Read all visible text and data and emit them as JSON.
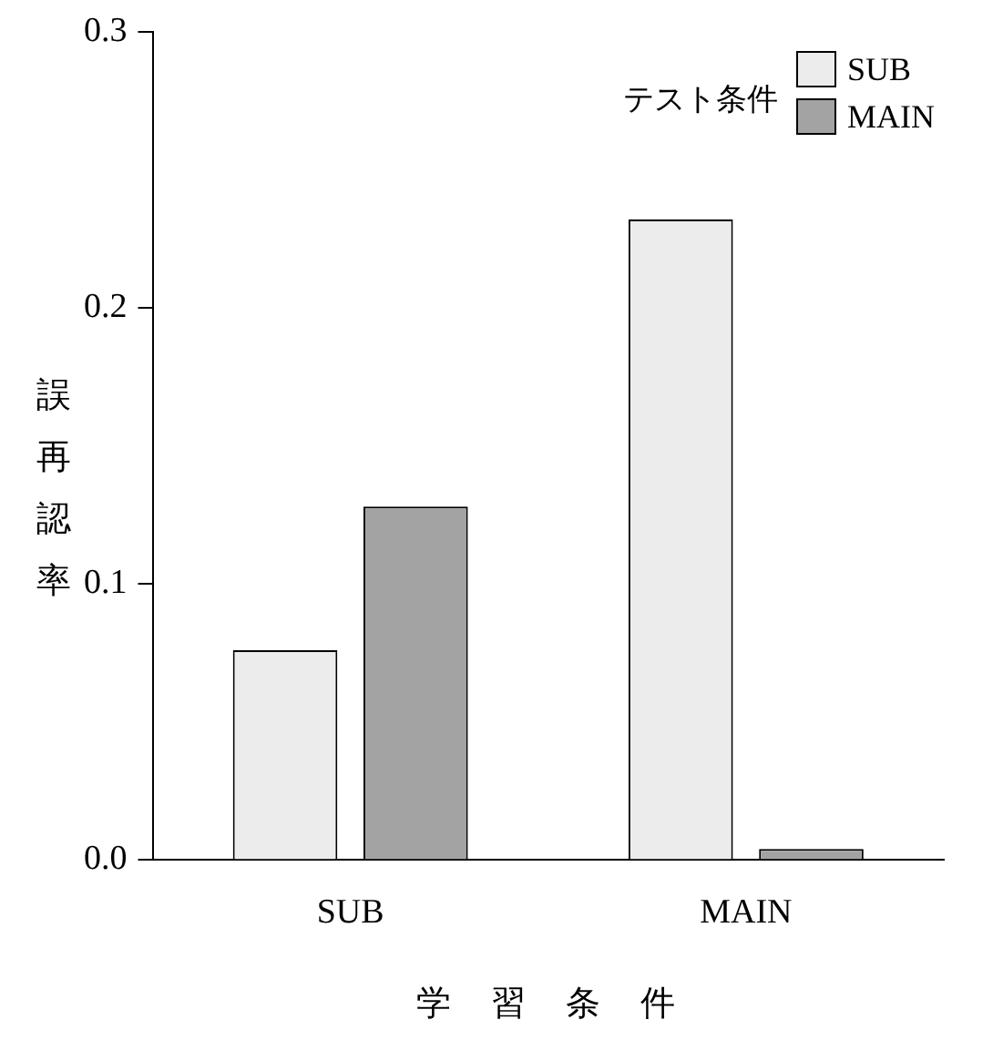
{
  "chart_data": {
    "type": "bar",
    "xlabel": "学習条件",
    "ylabel": "誤再認率",
    "legend_title": "テスト条件",
    "categories": [
      "SUB",
      "MAIN"
    ],
    "series": [
      {
        "name": "SUB",
        "color": "#ececec",
        "values": [
          0.076,
          0.232
        ]
      },
      {
        "name": "MAIN",
        "color": "#a3a3a3",
        "values": [
          0.128,
          0.004
        ]
      }
    ],
    "ylim": [
      0,
      0.3
    ],
    "yticks": [
      {
        "value": 0,
        "label": "0.0"
      },
      {
        "value": 0.1,
        "label": "0.1"
      },
      {
        "value": 0.2,
        "label": "0.2"
      },
      {
        "value": 0.3,
        "label": "0.3"
      }
    ],
    "grid": false,
    "legend": "top right"
  }
}
